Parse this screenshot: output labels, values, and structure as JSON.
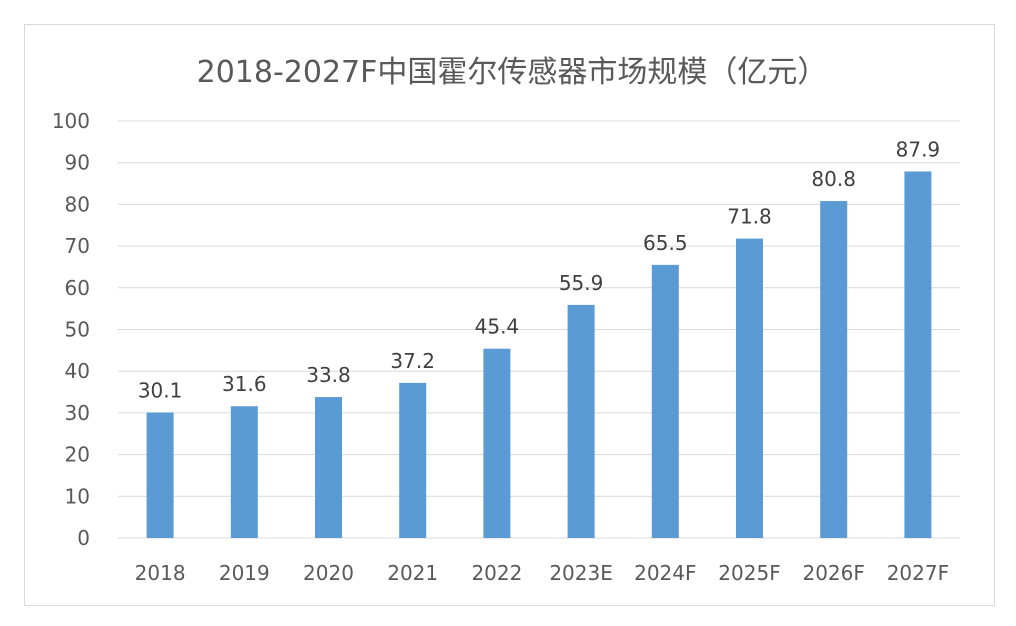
{
  "chart_data": {
    "type": "bar",
    "title": "2018-2027F中国霍尔传感器市场规模（亿元）",
    "categories": [
      "2018",
      "2019",
      "2020",
      "2021",
      "2022",
      "2023E",
      "2024F",
      "2025F",
      "2026F",
      "2027F"
    ],
    "values": [
      30.1,
      31.6,
      33.8,
      37.2,
      45.4,
      55.9,
      65.5,
      71.8,
      80.8,
      87.9
    ],
    "data_labels": [
      "30.1",
      "31.6",
      "33.8",
      "37.2",
      "45.4",
      "55.9",
      "65.5",
      "71.8",
      "80.8",
      "87.9"
    ],
    "yticks": [
      "0",
      "10",
      "20",
      "30",
      "40",
      "50",
      "60",
      "70",
      "80",
      "90",
      "100"
    ],
    "ylim": [
      0,
      100
    ],
    "grid": true,
    "legend": "none",
    "bar_color": "#5b9bd5",
    "grid_color": "#d9d9d9"
  }
}
